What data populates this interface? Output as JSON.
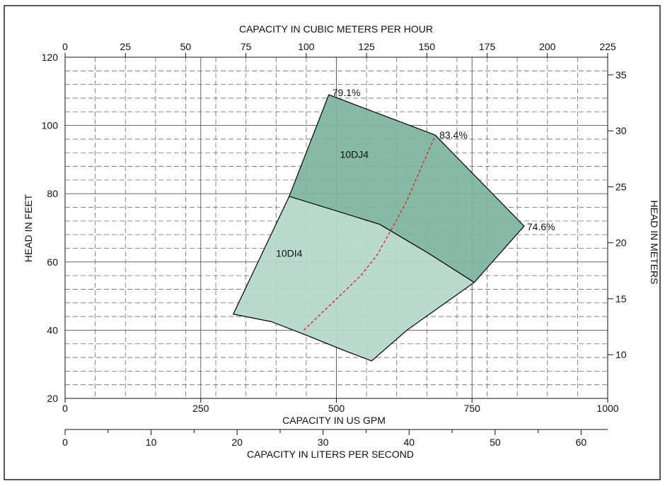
{
  "chart_data": {
    "type": "area",
    "title": "",
    "axes": {
      "bottom": {
        "label": "CAPACITY IN US GPM",
        "range": [
          0,
          1000
        ],
        "ticks": [
          0,
          250,
          500,
          750,
          1000
        ]
      },
      "top": {
        "label": "CAPACITY IN CUBIC METERS PER HOUR",
        "range": [
          0,
          225
        ],
        "ticks": [
          0,
          25,
          50,
          75,
          100,
          125,
          150,
          175,
          200,
          225
        ]
      },
      "left": {
        "label": "HEAD IN FEET",
        "range": [
          20,
          120
        ],
        "ticks": [
          20,
          40,
          60,
          80,
          100,
          120
        ]
      },
      "right": {
        "label": "HEAD IN METERS",
        "ticks": [
          10,
          15,
          20,
          25,
          30,
          35
        ]
      },
      "lps": {
        "label": "CAPACITY IN LITERS PER SECOND",
        "ticks": [
          0,
          10,
          20,
          30,
          40,
          50,
          60
        ]
      }
    },
    "grid": true,
    "regions": [
      {
        "name": "10DJ4",
        "color": "#7cb59d",
        "boundary": [
          [
            413,
            79.2
          ],
          [
            486,
            109
          ],
          [
            682,
            97.2
          ],
          [
            846,
            70.5
          ],
          [
            754,
            54
          ],
          [
            670,
            62.5
          ],
          [
            580,
            71
          ],
          [
            489,
            75.5
          ]
        ]
      },
      {
        "name": "10DI4",
        "color": "#b5d7ca",
        "boundary": [
          [
            310,
            44.7
          ],
          [
            413,
            79.2
          ],
          [
            489,
            75.5
          ],
          [
            580,
            71
          ],
          [
            670,
            62.5
          ],
          [
            754,
            54
          ],
          [
            630,
            40
          ],
          [
            565,
            31
          ],
          [
            515,
            34
          ],
          [
            445,
            38.5
          ],
          [
            380,
            42.5
          ]
        ]
      }
    ],
    "boundary_color": "#111111",
    "efficiency_line": {
      "color": "#d62728",
      "points": [
        [
          440,
          40
        ],
        [
          545,
          56
        ],
        [
          575,
          62
        ],
        [
          610,
          72
        ],
        [
          630,
          78
        ],
        [
          682,
          97
        ]
      ]
    },
    "annotations": [
      {
        "text": "79.1%",
        "x": 486,
        "y": 109
      },
      {
        "text": "83.4%",
        "x": 682,
        "y": 97.2
      },
      {
        "text": "74.6%",
        "x": 846,
        "y": 70.5
      },
      {
        "text": "10DJ4",
        "x": 533,
        "y": 91.5
      },
      {
        "text": "10DI4",
        "x": 413,
        "y": 62.5
      }
    ]
  }
}
